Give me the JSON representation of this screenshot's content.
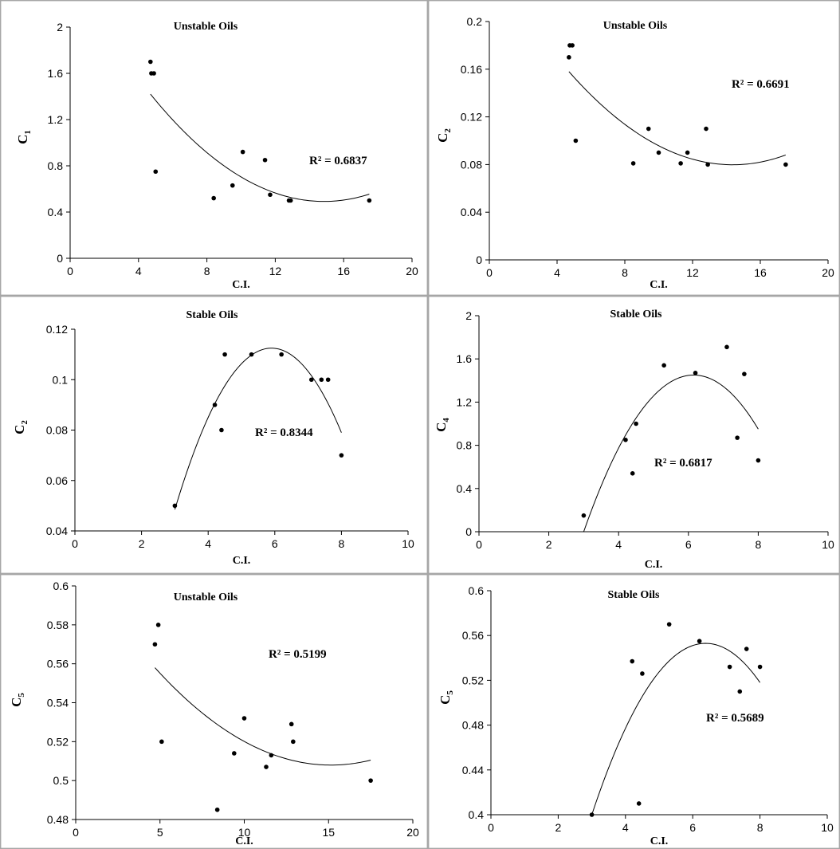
{
  "chart_data": [
    {
      "type": "scatter",
      "title": "Unstable Oils",
      "xlabel": "C.I.",
      "ylabel": "C",
      "ylabel_sub": "1",
      "xlim": [
        0,
        20
      ],
      "xticks": [
        0,
        4,
        8,
        12,
        16,
        20
      ],
      "ylim": [
        0,
        2
      ],
      "yticks": [
        0,
        0.4,
        0.8,
        1.2,
        1.6,
        2
      ],
      "ytick_labels": [
        "0",
        "0.4",
        "0.8",
        "1.2",
        "1.6",
        "2"
      ],
      "points": [
        [
          4.7,
          1.7
        ],
        [
          4.75,
          1.6
        ],
        [
          4.9,
          1.6
        ],
        [
          5.0,
          0.75
        ],
        [
          8.4,
          0.52
        ],
        [
          9.5,
          0.63
        ],
        [
          10.1,
          0.92
        ],
        [
          11.4,
          0.85
        ],
        [
          11.7,
          0.55
        ],
        [
          12.8,
          0.5
        ],
        [
          12.9,
          0.5
        ],
        [
          17.5,
          0.5
        ]
      ],
      "trendline": {
        "type": "polynomial-2",
        "x_range": [
          4.7,
          17.5
        ],
        "through": [
          [
            4.7,
            1.42
          ],
          [
            12.0,
            0.565
          ],
          [
            17.5,
            0.555
          ]
        ]
      },
      "r2": "R² = 0.6837"
    },
    {
      "type": "scatter",
      "title": "Unstable Oils",
      "xlabel": "C.I.",
      "ylabel": "C",
      "ylabel_sub": "2",
      "xlim": [
        0,
        20
      ],
      "xticks": [
        0,
        4,
        8,
        12,
        16,
        20
      ],
      "ylim": [
        0,
        0.2
      ],
      "yticks": [
        0,
        0.04,
        0.08,
        0.12,
        0.16,
        0.2
      ],
      "ytick_labels": [
        "0",
        "0.04",
        "0.08",
        "0.12",
        "0.16",
        "0.2"
      ],
      "points": [
        [
          4.7,
          0.17
        ],
        [
          4.75,
          0.18
        ],
        [
          4.9,
          0.18
        ],
        [
          5.1,
          0.1
        ],
        [
          8.5,
          0.081
        ],
        [
          9.4,
          0.11
        ],
        [
          10.0,
          0.09
        ],
        [
          11.3,
          0.081
        ],
        [
          11.7,
          0.09
        ],
        [
          12.8,
          0.11
        ],
        [
          12.9,
          0.08
        ],
        [
          17.5,
          0.08
        ]
      ],
      "trendline": {
        "type": "polynomial-2",
        "x_range": [
          4.7,
          17.5
        ],
        "through": [
          [
            4.7,
            0.158
          ],
          [
            12.0,
            0.0845
          ],
          [
            17.5,
            0.088
          ]
        ]
      },
      "r2": "R² = 0.6691"
    },
    {
      "type": "scatter",
      "title": "Stable Oils",
      "xlabel": "C.I.",
      "ylabel": "C",
      "ylabel_sub": "2",
      "xlim": [
        0,
        10
      ],
      "xticks": [
        0,
        2,
        4,
        6,
        8,
        10
      ],
      "ylim": [
        0.04,
        0.12
      ],
      "yticks": [
        0.04,
        0.06,
        0.08,
        0.1,
        0.12
      ],
      "ytick_labels": [
        "0.04",
        "0.06",
        "0.08",
        "0.1",
        "0.12"
      ],
      "points": [
        [
          3.0,
          0.05
        ],
        [
          4.2,
          0.09
        ],
        [
          4.4,
          0.08
        ],
        [
          4.5,
          0.11
        ],
        [
          5.3,
          0.11
        ],
        [
          6.2,
          0.11
        ],
        [
          7.1,
          0.1
        ],
        [
          7.4,
          0.1
        ],
        [
          7.6,
          0.1
        ],
        [
          8.0,
          0.07
        ]
      ],
      "trendline": {
        "type": "polynomial-2",
        "x_range": [
          3.0,
          8.0
        ],
        "through": [
          [
            3.0,
            0.0485
          ],
          [
            5.9,
            0.1125
          ],
          [
            8.0,
            0.079
          ]
        ]
      },
      "r2": "R² = 0.8344"
    },
    {
      "type": "scatter",
      "title": "Stable Oils",
      "xlabel": "C.I.",
      "ylabel": "C",
      "ylabel_sub": "4",
      "xlim": [
        0,
        10
      ],
      "xticks": [
        0,
        2,
        4,
        6,
        8,
        10
      ],
      "ylim": [
        0,
        2
      ],
      "yticks": [
        0,
        0.4,
        0.8,
        1.2,
        1.6,
        2
      ],
      "ytick_labels": [
        "0",
        "0.4",
        "0.8",
        "1.2",
        "1.6",
        "2"
      ],
      "points": [
        [
          3.0,
          0.15
        ],
        [
          4.2,
          0.85
        ],
        [
          4.4,
          0.54
        ],
        [
          4.5,
          1.0
        ],
        [
          5.3,
          1.54
        ],
        [
          6.2,
          1.47
        ],
        [
          7.1,
          1.71
        ],
        [
          7.4,
          0.87
        ],
        [
          7.6,
          1.46
        ],
        [
          8.0,
          0.66
        ]
      ],
      "trendline": {
        "type": "polynomial-2",
        "x_range": [
          3.0,
          8.0
        ],
        "through": [
          [
            3.0,
            0.0
          ],
          [
            6.2,
            1.45
          ],
          [
            8.0,
            0.95
          ]
        ]
      },
      "r2": "R² = 0.6817"
    },
    {
      "type": "scatter",
      "title": "Unstable Oils",
      "xlabel": "C.I.",
      "ylabel": "C",
      "ylabel_sub": "5",
      "xlim": [
        0,
        20
      ],
      "xticks": [
        0,
        5,
        10,
        15,
        20
      ],
      "ylim": [
        0.48,
        0.6
      ],
      "yticks": [
        0.48,
        0.5,
        0.52,
        0.54,
        0.56,
        0.58,
        0.6
      ],
      "ytick_labels": [
        "0.48",
        "0.5",
        "0.52",
        "0.54",
        "0.56",
        "0.58",
        "0.6"
      ],
      "points": [
        [
          4.7,
          0.57
        ],
        [
          4.9,
          0.58
        ],
        [
          5.1,
          0.52
        ],
        [
          8.4,
          0.485
        ],
        [
          9.4,
          0.514
        ],
        [
          10.0,
          0.532
        ],
        [
          11.3,
          0.507
        ],
        [
          11.6,
          0.513
        ],
        [
          12.8,
          0.529
        ],
        [
          12.9,
          0.52
        ],
        [
          17.5,
          0.5
        ]
      ],
      "trendline": {
        "type": "polynomial-2",
        "x_range": [
          4.7,
          17.5
        ],
        "through": [
          [
            4.7,
            0.558
          ],
          [
            12.0,
            0.5125
          ],
          [
            17.5,
            0.5105
          ]
        ]
      },
      "r2": "R² = 0.5199"
    },
    {
      "type": "scatter",
      "title": "Stable Oils",
      "xlabel": "C.I.",
      "ylabel": "C",
      "ylabel_sub": "5",
      "xlim": [
        0,
        10
      ],
      "xticks": [
        0,
        2,
        4,
        6,
        8,
        10
      ],
      "ylim": [
        0.4,
        0.6
      ],
      "yticks": [
        0.4,
        0.44,
        0.48,
        0.52,
        0.56,
        0.6
      ],
      "ytick_labels": [
        "0.4",
        "0.44",
        "0.48",
        "0.52",
        "0.56",
        "0.6"
      ],
      "points": [
        [
          3.0,
          0.4
        ],
        [
          4.2,
          0.537
        ],
        [
          4.4,
          0.41
        ],
        [
          4.5,
          0.526
        ],
        [
          5.3,
          0.57
        ],
        [
          6.2,
          0.555
        ],
        [
          7.1,
          0.532
        ],
        [
          7.4,
          0.51
        ],
        [
          7.6,
          0.548
        ],
        [
          8.0,
          0.532
        ]
      ],
      "trendline": {
        "type": "polynomial-2",
        "x_range": [
          3.0,
          8.0
        ],
        "through": [
          [
            3.0,
            0.4
          ],
          [
            6.4,
            0.553
          ],
          [
            8.0,
            0.518
          ]
        ]
      },
      "r2": "R² = 0.5689"
    }
  ]
}
